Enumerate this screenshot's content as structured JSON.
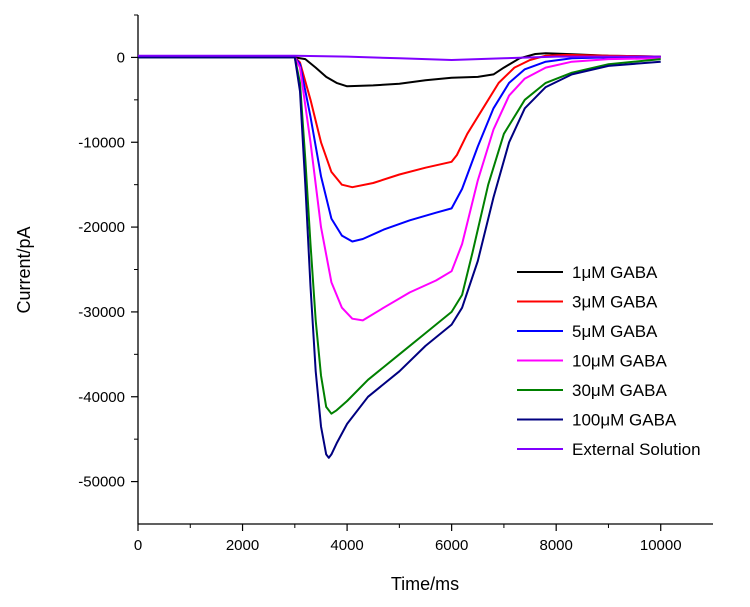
{
  "chart_data": {
    "type": "line",
    "xlabel": "Time/ms",
    "ylabel": "Current/pA",
    "xlim": [
      0,
      11000
    ],
    "ylim": [
      -55000,
      5000
    ],
    "xticks": [
      0,
      2000,
      4000,
      6000,
      8000,
      10000
    ],
    "yticks": [
      0,
      -10000,
      -20000,
      -30000,
      -40000,
      -50000
    ],
    "xtick_labels": [
      "0",
      "2000",
      "4000",
      "6000",
      "8000",
      "10000"
    ],
    "ytick_labels": [
      "0",
      "-10000",
      "-20000",
      "-30000",
      "-40000",
      "-50000"
    ],
    "legend_position": "lower-right",
    "grid": false,
    "series": [
      {
        "name": "1μM GABA",
        "color": "#000000",
        "x": [
          0,
          3000,
          3200,
          3400,
          3600,
          3800,
          4000,
          4500,
          5000,
          5500,
          6000,
          6500,
          6800,
          7000,
          7300,
          7600,
          7800,
          8200,
          9000,
          10000
        ],
        "y": [
          0,
          0,
          -200,
          -1200,
          -2300,
          -3000,
          -3400,
          -3300,
          -3100,
          -2700,
          -2400,
          -2300,
          -2000,
          -1200,
          -100,
          400,
          500,
          400,
          200,
          100
        ]
      },
      {
        "name": "3μM GABA",
        "color": "#ff0000",
        "x": [
          0,
          3000,
          3100,
          3300,
          3500,
          3700,
          3900,
          4100,
          4500,
          5000,
          5500,
          6000,
          6100,
          6300,
          6600,
          6900,
          7200,
          7500,
          7800,
          8200,
          9000,
          10000
        ],
        "y": [
          0,
          0,
          -600,
          -5000,
          -10000,
          -13500,
          -15000,
          -15300,
          -14800,
          -13800,
          -13000,
          -12300,
          -11500,
          -9000,
          -6000,
          -3000,
          -1200,
          -300,
          200,
          300,
          200,
          100
        ]
      },
      {
        "name": "5μM GABA",
        "color": "#0000ff",
        "x": [
          0,
          3000,
          3100,
          3300,
          3500,
          3700,
          3900,
          4100,
          4300,
          4700,
          5200,
          5700,
          6000,
          6200,
          6500,
          6800,
          7100,
          7400,
          7800,
          8300,
          9000,
          10000
        ],
        "y": [
          0,
          0,
          -800,
          -7000,
          -14000,
          -19000,
          -21000,
          -21700,
          -21400,
          -20300,
          -19200,
          -18300,
          -17800,
          -15500,
          -10500,
          -6000,
          -3000,
          -1400,
          -500,
          -100,
          0,
          0
        ]
      },
      {
        "name": "10μM GABA",
        "color": "#ff00ff",
        "x": [
          0,
          3000,
          3100,
          3300,
          3500,
          3700,
          3900,
          4100,
          4300,
          4700,
          5200,
          5700,
          6000,
          6200,
          6500,
          6800,
          7100,
          7400,
          7800,
          8300,
          9000,
          10000
        ],
        "y": [
          0,
          0,
          -1200,
          -10000,
          -20000,
          -26500,
          -29500,
          -30800,
          -31000,
          -29500,
          -27700,
          -26300,
          -25200,
          -22000,
          -14500,
          -8500,
          -4500,
          -2500,
          -1200,
          -500,
          -200,
          -100
        ]
      },
      {
        "name": "30μM GABA",
        "color": "#008000",
        "x": [
          0,
          3000,
          3100,
          3200,
          3300,
          3400,
          3500,
          3600,
          3700,
          3800,
          4000,
          4400,
          5000,
          5500,
          6000,
          6200,
          6400,
          6700,
          7000,
          7400,
          7800,
          8300,
          9000,
          10000
        ],
        "y": [
          0,
          0,
          -3000,
          -12000,
          -22000,
          -31000,
          -37500,
          -41200,
          -42000,
          -41600,
          -40500,
          -38000,
          -35000,
          -32500,
          -30000,
          -28000,
          -23000,
          -15000,
          -9000,
          -5000,
          -3000,
          -1800,
          -800,
          -200
        ]
      },
      {
        "name": "100μM GABA",
        "color": "#000080",
        "x": [
          0,
          3000,
          3100,
          3200,
          3300,
          3400,
          3500,
          3600,
          3650,
          3700,
          3800,
          4000,
          4400,
          5000,
          5500,
          6000,
          6200,
          6500,
          6800,
          7100,
          7400,
          7800,
          8300,
          9000,
          10000
        ],
        "y": [
          0,
          0,
          -4000,
          -15000,
          -27000,
          -37000,
          -43500,
          -46800,
          -47200,
          -46800,
          -45500,
          -43200,
          -40000,
          -37000,
          -34000,
          -31500,
          -29500,
          -24000,
          -16500,
          -10000,
          -6000,
          -3500,
          -2000,
          -1000,
          -500
        ]
      },
      {
        "name": "External Solution",
        "color": "#8000ff",
        "x": [
          0,
          3000,
          4000,
          5000,
          6000,
          7000,
          8000,
          9000,
          10000
        ],
        "y": [
          200,
          200,
          100,
          -100,
          -300,
          -100,
          100,
          100,
          100
        ]
      }
    ]
  }
}
